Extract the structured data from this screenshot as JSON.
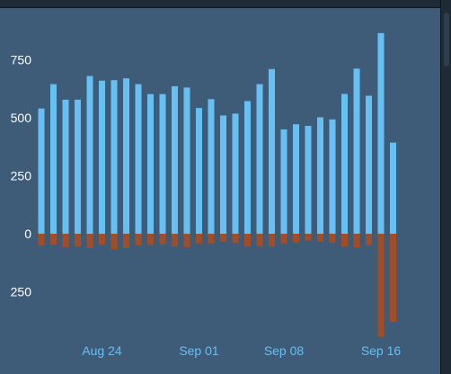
{
  "chart_data": {
    "type": "bar",
    "title": "",
    "xlabel": "",
    "ylabel": "",
    "ylim": [
      -450,
      900
    ],
    "y_ticks": [
      {
        "value": 750,
        "label": "750"
      },
      {
        "value": 500,
        "label": "500"
      },
      {
        "value": 250,
        "label": "250"
      },
      {
        "value": 0,
        "label": "0"
      },
      {
        "value": -250,
        "label": "250"
      }
    ],
    "x_ticks": [
      {
        "index": 5,
        "label": "Aug 24"
      },
      {
        "index": 13,
        "label": "Sep 01"
      },
      {
        "index": 20,
        "label": "Sep 08"
      },
      {
        "index": 28,
        "label": "Sep 16"
      }
    ],
    "categories": [
      "Aug 19",
      "Aug 20",
      "Aug 21",
      "Aug 22",
      "Aug 23",
      "Aug 24",
      "Aug 25",
      "Aug 26",
      "Aug 27",
      "Aug 28",
      "Aug 29",
      "Aug 30",
      "Aug 31",
      "Sep 01",
      "Sep 02",
      "Sep 03",
      "Sep 04",
      "Sep 05",
      "Sep 06",
      "Sep 07",
      "Sep 08",
      "Sep 09",
      "Sep 10",
      "Sep 11",
      "Sep 12",
      "Sep 13",
      "Sep 14",
      "Sep 15",
      "Sep 16",
      "Sep 17",
      "Sep 18"
    ],
    "series": [
      {
        "color": "#66c0f4",
        "values": [
          540,
          645,
          578,
          578,
          680,
          660,
          662,
          670,
          645,
          602,
          602,
          636,
          630,
          542,
          580,
          510,
          518,
          572,
          645,
          710,
          450,
          472,
          465,
          502,
          493,
          603,
          712,
          595,
          865,
          393,
          0
        ]
      },
      {
        "color": "#a34c25",
        "values": [
          -50,
          -48,
          -58,
          -55,
          -62,
          -48,
          -68,
          -62,
          -50,
          -48,
          -45,
          -55,
          -58,
          -42,
          -42,
          -35,
          -40,
          -55,
          -55,
          -55,
          -42,
          -38,
          -30,
          -35,
          -38,
          -55,
          -60,
          -50,
          -445,
          -380,
          0
        ]
      }
    ]
  }
}
